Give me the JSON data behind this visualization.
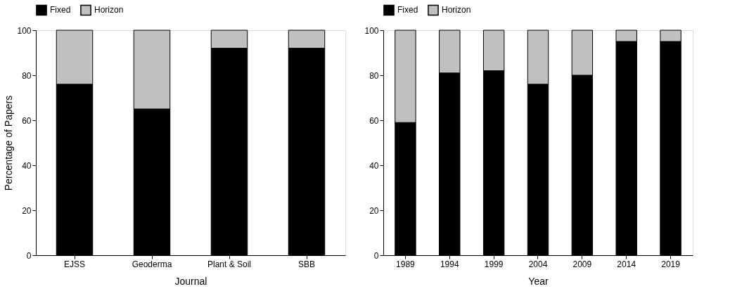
{
  "chart_data": [
    {
      "type": "bar",
      "stacked": true,
      "xlabel": "Journal",
      "ylabel": "Percentage of Papers",
      "categories": [
        "EJSS",
        "Geoderma",
        "Plant & Soil",
        "SBB"
      ],
      "series": [
        {
          "name": "Fixed",
          "color": "#000000",
          "values": [
            76,
            65,
            92,
            92
          ]
        },
        {
          "name": "Horizon",
          "color": "#c0c0c0",
          "values": [
            24,
            35,
            8,
            8
          ]
        }
      ],
      "ylim": [
        0,
        100
      ],
      "yticks": [
        0,
        20,
        40,
        60,
        80,
        100
      ],
      "grid": false,
      "legend": "top"
    },
    {
      "type": "bar",
      "stacked": true,
      "xlabel": "Year",
      "categories": [
        "1989",
        "1994",
        "1999",
        "2004",
        "2009",
        "2014",
        "2019"
      ],
      "series": [
        {
          "name": "Fixed",
          "color": "#000000",
          "values": [
            59,
            81,
            82,
            76,
            80,
            95,
            95
          ]
        },
        {
          "name": "Horizon",
          "color": "#c0c0c0",
          "values": [
            41,
            19,
            18,
            24,
            20,
            5,
            5
          ]
        }
      ],
      "ylim": [
        0,
        100
      ],
      "yticks": [
        0,
        20,
        40,
        60,
        80,
        100
      ],
      "grid": false,
      "legend": "top"
    }
  ]
}
